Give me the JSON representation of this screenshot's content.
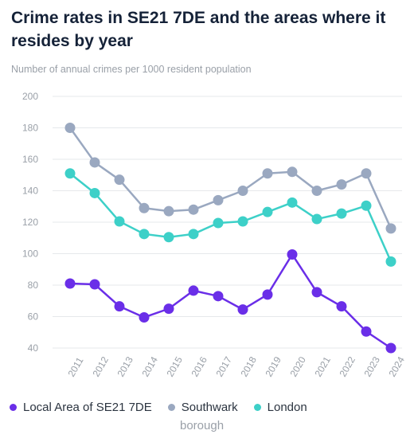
{
  "header": {
    "title": "Crime rates in SE21 7DE and the areas where it resides by year",
    "subtitle": "Number of annual crimes per 1000 resident population"
  },
  "legend": {
    "items": [
      "Local Area of SE21 7DE",
      "Southwark",
      "London"
    ],
    "southwark_suffix": "borough"
  },
  "chart_data": {
    "type": "line",
    "x": [
      "2011",
      "2012",
      "2013",
      "2014",
      "2015",
      "2016",
      "2017",
      "2018",
      "2019",
      "2020",
      "2021",
      "2022",
      "2023",
      "2024"
    ],
    "ylim": [
      40,
      200
    ],
    "yticks": [
      "40",
      "60",
      "80",
      "100",
      "120",
      "140",
      "160",
      "180",
      "200"
    ],
    "ylabel": "Number of annual crimes per 1000 resident population",
    "grid": true,
    "legend_position": "bottom",
    "series": [
      {
        "name": "Local Area of SE21 7DE",
        "color": "#6a2ee8",
        "values": [
          81,
          80.5,
          66.5,
          59.5,
          65,
          76.5,
          73,
          64.5,
          74,
          99.5,
          75.5,
          66.5,
          50.5,
          40
        ]
      },
      {
        "name": "Southwark",
        "color": "#9aa8c0",
        "values": [
          180,
          158,
          147,
          129,
          127,
          128,
          134,
          140,
          151,
          152,
          140,
          144,
          151,
          116
        ]
      },
      {
        "name": "London",
        "color": "#3dd0c8",
        "values": [
          151,
          138.5,
          120.5,
          112.5,
          110.5,
          112.5,
          119.5,
          120.5,
          126.5,
          132.5,
          122,
          125.5,
          130.5,
          95
        ]
      }
    ]
  }
}
